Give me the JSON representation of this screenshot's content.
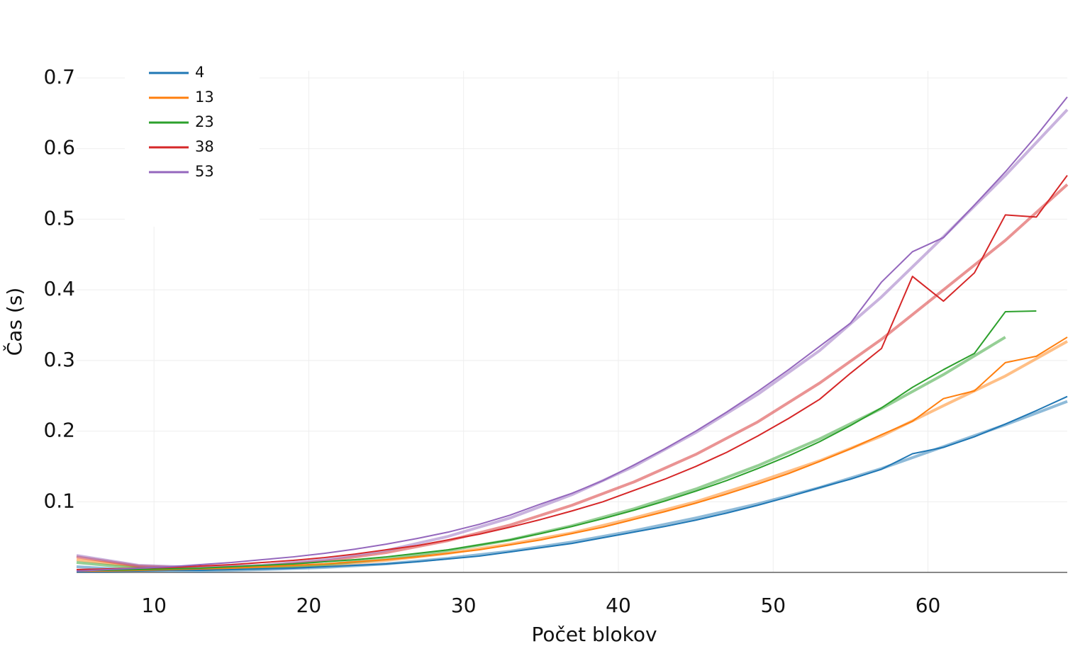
{
  "chart_data": {
    "type": "line",
    "xlabel": "Počet blokov",
    "ylabel": "Čas (s)",
    "x": [
      5,
      7,
      9,
      11,
      13,
      15,
      17,
      19,
      21,
      23,
      25,
      27,
      29,
      31,
      33,
      35,
      37,
      39,
      41,
      43,
      45,
      47,
      49,
      51,
      53,
      55,
      57,
      59,
      61,
      63,
      65,
      67,
      69
    ],
    "series": [
      {
        "name": "4",
        "color": "#1f77b4",
        "values": [
          0.001,
          0.001,
          0.002,
          0.003,
          0.003,
          0.004,
          0.005,
          0.006,
          0.008,
          0.01,
          0.012,
          0.015,
          0.019,
          0.023,
          0.029,
          0.035,
          0.041,
          0.049,
          0.057,
          0.065,
          0.074,
          0.084,
          0.095,
          0.107,
          0.12,
          0.132,
          0.146,
          0.168,
          0.177,
          0.192,
          0.21,
          0.229,
          0.249
        ]
      },
      {
        "name": "13",
        "color": "#ff7f0e",
        "values": [
          0.002,
          0.002,
          0.003,
          0.004,
          0.005,
          0.006,
          0.008,
          0.01,
          0.012,
          0.015,
          0.018,
          0.022,
          0.027,
          0.032,
          0.039,
          0.046,
          0.055,
          0.064,
          0.075,
          0.086,
          0.098,
          0.111,
          0.125,
          0.14,
          0.157,
          0.175,
          0.195,
          0.214,
          0.246,
          0.257,
          0.297,
          0.306,
          0.333
        ]
      },
      {
        "name": "23",
        "color": "#2ca02c",
        "values": [
          0.003,
          0.003,
          0.004,
          0.005,
          0.006,
          0.008,
          0.01,
          0.012,
          0.015,
          0.018,
          0.022,
          0.027,
          0.032,
          0.039,
          0.046,
          0.055,
          0.065,
          0.076,
          0.088,
          0.101,
          0.115,
          0.13,
          0.147,
          0.165,
          0.185,
          0.208,
          0.233,
          0.262,
          0.287,
          0.31,
          0.369,
          0.37,
          null
        ]
      },
      {
        "name": "38",
        "color": "#d62728",
        "values": [
          0.004,
          0.005,
          0.006,
          0.007,
          0.009,
          0.011,
          0.014,
          0.017,
          0.021,
          0.026,
          0.032,
          0.038,
          0.046,
          0.054,
          0.064,
          0.075,
          0.087,
          0.1,
          0.116,
          0.132,
          0.15,
          0.17,
          0.193,
          0.218,
          0.245,
          0.282,
          0.317,
          0.419,
          0.384,
          0.424,
          0.506,
          0.503,
          0.562
        ]
      },
      {
        "name": "53",
        "color": "#9467bd",
        "values": [
          0.002,
          0.004,
          0.006,
          0.008,
          0.011,
          0.014,
          0.018,
          0.022,
          0.027,
          0.033,
          0.04,
          0.048,
          0.057,
          0.068,
          0.081,
          0.097,
          0.112,
          0.13,
          0.152,
          0.175,
          0.2,
          0.227,
          0.256,
          0.287,
          0.32,
          0.353,
          0.411,
          0.454,
          0.474,
          0.52,
          0.567,
          0.618,
          0.673
        ]
      }
    ],
    "fit_x": [
      5,
      9,
      13,
      17,
      21,
      25,
      29,
      33,
      37,
      41,
      45,
      49,
      53,
      57,
      61,
      65,
      69
    ],
    "fits": [
      {
        "color": "#1f77b4",
        "values": [
          0.008,
          0.003,
          0.002,
          0.004,
          0.007,
          0.012,
          0.02,
          0.03,
          0.043,
          0.059,
          0.077,
          0.097,
          0.12,
          0.147,
          0.178,
          0.209,
          0.242
        ]
      },
      {
        "color": "#ff7f0e",
        "values": [
          0.018,
          0.008,
          0.004,
          0.006,
          0.01,
          0.017,
          0.027,
          0.04,
          0.056,
          0.077,
          0.1,
          0.128,
          0.158,
          0.193,
          0.236,
          0.278,
          0.327
        ]
      },
      {
        "color": "#2ca02c",
        "values": [
          0.014,
          0.006,
          0.004,
          0.006,
          0.011,
          0.019,
          0.031,
          0.046,
          0.066,
          0.09,
          0.118,
          0.151,
          0.189,
          0.232,
          0.28,
          0.333,
          null
        ]
      },
      {
        "color": "#d62728",
        "values": [
          0.022,
          0.009,
          0.006,
          0.009,
          0.016,
          0.028,
          0.045,
          0.067,
          0.095,
          0.128,
          0.167,
          0.213,
          0.268,
          0.33,
          0.4,
          0.47,
          0.549
        ]
      },
      {
        "color": "#9467bd",
        "values": [
          0.024,
          0.01,
          0.007,
          0.01,
          0.018,
          0.031,
          0.051,
          0.077,
          0.11,
          0.15,
          0.198,
          0.252,
          0.314,
          0.39,
          0.475,
          0.562,
          0.655
        ]
      }
    ],
    "xlim": [
      5,
      69
    ],
    "xticks": [
      10,
      20,
      30,
      40,
      50,
      60
    ],
    "ylim": [
      0,
      0.71
    ],
    "yticks": [
      0.1,
      0.2,
      0.3,
      0.4,
      0.5,
      0.6,
      0.7
    ],
    "grid": true,
    "legend": "top-left"
  }
}
